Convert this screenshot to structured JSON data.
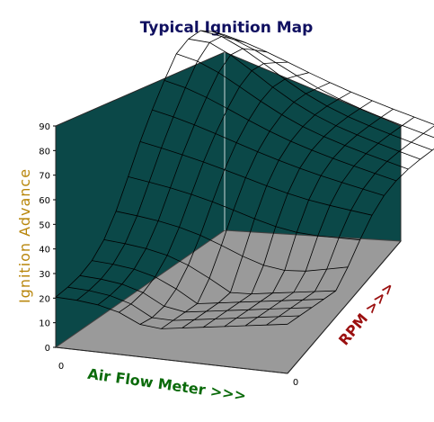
{
  "chart_data": {
    "type": "surface",
    "title": "Typical Ignition Map",
    "zlabel": "Ignition Advance",
    "xlabel": "Air Flow Meter >>>",
    "ylabel": "RPM >>>",
    "z_ticks": [
      "0",
      "10",
      "20",
      "30",
      "40",
      "50",
      "60",
      "70",
      "80",
      "90"
    ],
    "x_tick": "0",
    "y_tick": "0",
    "zlim": [
      0,
      90
    ],
    "grid": "off",
    "colors": {
      "back_wall": "#0b4848",
      "floor": "#9a9a9a",
      "mesh": "#000000",
      "title": "#101060"
    }
  }
}
